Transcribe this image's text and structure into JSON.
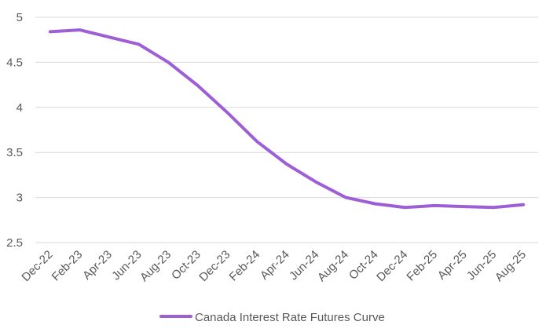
{
  "chart_data": {
    "type": "line",
    "categories": [
      "Dec-22",
      "Feb-23",
      "Apr-23",
      "Jun-23",
      "Aug-23",
      "Oct-23",
      "Dec-23",
      "Feb-24",
      "Apr-24",
      "Jun-24",
      "Aug-24",
      "Oct-24",
      "Dec-24",
      "Feb-25",
      "Apr-25",
      "Jun-25",
      "Aug-25"
    ],
    "series": [
      {
        "name": "Canada Interest Rate Futures Curve",
        "color": "#9e5fd6",
        "values": [
          4.84,
          4.86,
          4.78,
          4.7,
          4.5,
          4.24,
          3.94,
          3.62,
          3.37,
          3.17,
          3.0,
          2.93,
          2.89,
          2.91,
          2.9,
          2.89,
          2.92
        ]
      }
    ],
    "ylim": [
      2.5,
      5
    ],
    "yticks": [
      2.5,
      3,
      3.5,
      4,
      4.5,
      5
    ],
    "grid": true,
    "legend": "bottom"
  }
}
